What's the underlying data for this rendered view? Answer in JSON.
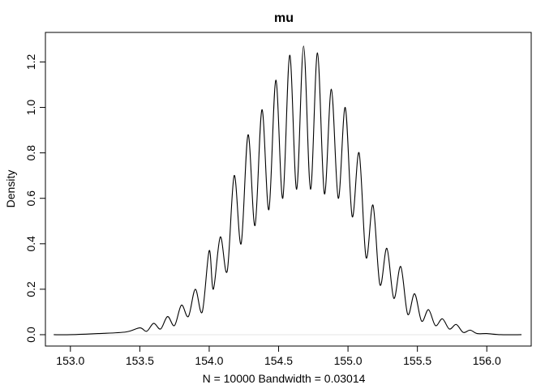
{
  "chart_data": {
    "type": "line",
    "title": "mu",
    "xlabel": "N = 10000   Bandwidth = 0.03014",
    "ylabel": "Density",
    "xlim": [
      152.82,
      156.32
    ],
    "ylim": [
      -0.05,
      1.33
    ],
    "x_ticks": [
      153.0,
      153.5,
      154.0,
      154.5,
      155.0,
      155.5,
      156.0
    ],
    "x_tick_labels": [
      "153.0",
      "153.5",
      "154.0",
      "154.5",
      "155.0",
      "155.5",
      "156.0"
    ],
    "y_ticks": [
      0.0,
      0.2,
      0.4,
      0.6,
      0.8,
      1.0,
      1.2
    ],
    "y_tick_labels": [
      "0.0",
      "0.2",
      "0.4",
      "0.6",
      "0.8",
      "1.0",
      "1.2"
    ],
    "baseline_y": 0.0,
    "grid": false,
    "legend": "none",
    "series": [
      {
        "x": [
          152.88,
          153.0,
          153.2,
          153.4,
          153.5,
          153.55,
          153.6,
          153.65,
          153.7,
          153.75,
          153.8,
          153.85,
          153.9,
          153.95,
          154.0,
          154.03,
          154.08,
          154.13,
          154.18,
          154.23,
          154.28,
          154.33,
          154.38,
          154.43,
          154.48,
          154.53,
          154.58,
          154.63,
          154.68,
          154.73,
          154.78,
          154.83,
          154.88,
          154.93,
          154.98,
          155.03,
          155.08,
          155.13,
          155.18,
          155.23,
          155.28,
          155.33,
          155.38,
          155.43,
          155.48,
          155.53,
          155.58,
          155.63,
          155.68,
          155.73,
          155.78,
          155.83,
          155.88,
          155.93,
          156.0,
          156.1,
          156.25
        ],
        "y": [
          0.0,
          0.0,
          0.005,
          0.012,
          0.03,
          0.015,
          0.05,
          0.025,
          0.08,
          0.04,
          0.13,
          0.08,
          0.2,
          0.1,
          0.37,
          0.2,
          0.43,
          0.28,
          0.7,
          0.4,
          0.88,
          0.48,
          0.99,
          0.55,
          1.12,
          0.6,
          1.23,
          0.64,
          1.27,
          0.64,
          1.24,
          0.62,
          1.08,
          0.6,
          1.0,
          0.52,
          0.8,
          0.34,
          0.57,
          0.22,
          0.38,
          0.16,
          0.3,
          0.09,
          0.18,
          0.06,
          0.11,
          0.04,
          0.07,
          0.025,
          0.045,
          0.01,
          0.02,
          0.005,
          0.005,
          0.0,
          0.0
        ]
      }
    ]
  }
}
